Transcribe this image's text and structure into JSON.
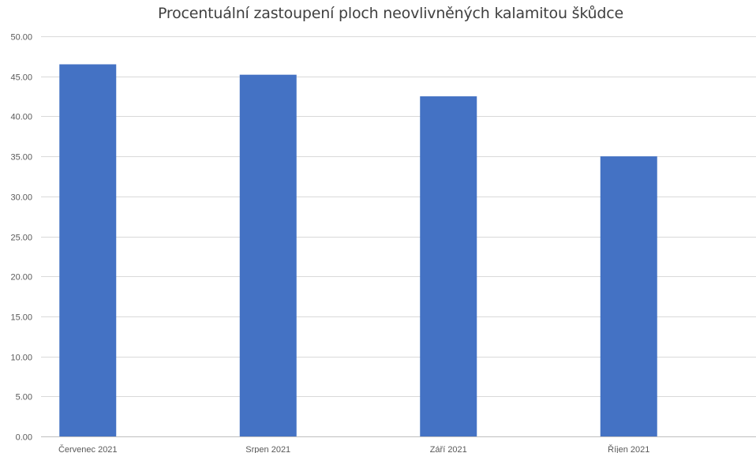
{
  "chart_data": {
    "type": "bar",
    "title": "Procentuální zastoupení ploch neovlivněných kalamitou škůdce",
    "xlabel": "",
    "ylabel": "",
    "categories": [
      "Červenec 2021",
      "Srpen 2021",
      "Září  2021",
      "Říjen 2021"
    ],
    "values": [
      46.5,
      45.2,
      42.5,
      35.0
    ],
    "ylim": [
      0,
      50
    ],
    "yticks": [
      "0.00",
      "5.00",
      "10.00",
      "15.00",
      "20.00",
      "25.00",
      "30.00",
      "35.00",
      "40.00",
      "45.00",
      "50.00"
    ],
    "grid": true,
    "legend": "none",
    "bar_color": "#4472C4",
    "grid_color": "#D9D9D9",
    "axis_color": "#BFBFBF"
  }
}
